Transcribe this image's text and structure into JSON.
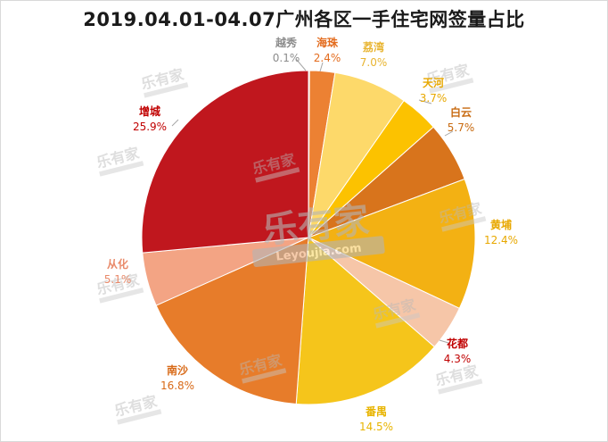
{
  "chart_data": {
    "type": "pie",
    "title": "2019.04.01-04.07广州各区一手住宅网签量占比",
    "start_angle_deg": 90,
    "direction": "clockwise",
    "slices": [
      {
        "label": "越秀",
        "value": 0.1,
        "display": "0.1%",
        "color": "#9a8f86",
        "label_color": "#8c8c8c"
      },
      {
        "label": "海珠",
        "value": 2.4,
        "display": "2.4%",
        "color": "#ec8133",
        "label_color": "#e36c1e"
      },
      {
        "label": "荔湾",
        "value": 7.0,
        "display": "7.0%",
        "color": "#fdd96a",
        "label_color": "#e8b430"
      },
      {
        "label": "天河",
        "value": 3.7,
        "display": "3.7%",
        "color": "#fcc200",
        "label_color": "#e8a800"
      },
      {
        "label": "白云",
        "value": 5.7,
        "display": "5.7%",
        "color": "#d8741c",
        "label_color": "#c86a10"
      },
      {
        "label": "黄埔",
        "value": 12.4,
        "display": "12.4%",
        "color": "#f3b113",
        "label_color": "#e8a800"
      },
      {
        "label": "花都",
        "value": 4.3,
        "display": "4.3%",
        "color": "#f6c6a8",
        "label_color": "#c00000"
      },
      {
        "label": "番禺",
        "value": 14.5,
        "display": "14.5%",
        "color": "#f5c51b",
        "label_color": "#e8b400"
      },
      {
        "label": "南沙",
        "value": 16.8,
        "display": "16.8%",
        "color": "#e77c2a",
        "label_color": "#d86a18"
      },
      {
        "label": "从化",
        "value": 5.1,
        "display": "5.1%",
        "color": "#f3a484",
        "label_color": "#e98a6a"
      },
      {
        "label": "增城",
        "value": 25.9,
        "display": "25.9%",
        "color": "#c0171e",
        "label_color": "#c00000"
      }
    ]
  },
  "watermark": {
    "brand": "乐有家",
    "domain": "Leyoujia.com"
  }
}
